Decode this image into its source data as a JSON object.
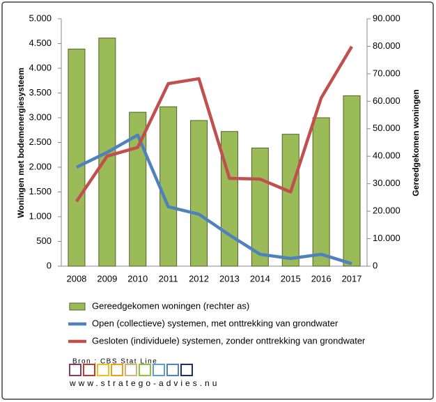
{
  "chart_data": {
    "type": "bar",
    "categories": [
      "2008",
      "2009",
      "2010",
      "2011",
      "2012",
      "2013",
      "2014",
      "2015",
      "2016",
      "2017"
    ],
    "series": [
      {
        "name": "Gereedgekomen woningen (rechter as)",
        "type": "bar",
        "axis": "y2",
        "color": "#9bbb59",
        "values": [
          79000,
          83000,
          56000,
          58000,
          53000,
          49000,
          43000,
          48000,
          54000,
          62000
        ]
      },
      {
        "name": "Open (collectieve) systemen, met onttrekking van grondwater",
        "type": "line",
        "color": "#4f81bd",
        "values": [
          2000,
          2300,
          2650,
          1200,
          1050,
          630,
          240,
          155,
          240,
          50
        ]
      },
      {
        "name": "Gesloten (individuele) systemen, zonder onttrekking van grondwater",
        "type": "line",
        "color": "#c0504d",
        "values": [
          1310,
          2225,
          2400,
          3690,
          3790,
          1775,
          1760,
          1500,
          3400,
          4440
        ]
      }
    ],
    "ylabel": "Woningen met bodemenergiesysteem",
    "y2label": "Gereedgekomen woningen",
    "ylim": [
      0,
      5000
    ],
    "yticks": [
      0,
      500,
      {
        "value": 1000,
        "label": "1.000"
      },
      {
        "value": 1500,
        "label": "1.500"
      },
      {
        "value": 2000,
        "label": "2.000"
      },
      {
        "value": 2500,
        "label": "2.500"
      },
      {
        "value": 3000,
        "label": "3.000"
      },
      {
        "value": 3500,
        "label": "3.500"
      },
      {
        "value": 4000,
        "label": "4.000"
      },
      {
        "value": 4500,
        "label": "4.500"
      },
      {
        "value": 5000,
        "label": "5.000"
      }
    ],
    "y2lim": [
      0,
      90000
    ],
    "y2ticks": [
      0,
      {
        "value": 10000,
        "label": "10.000"
      },
      {
        "value": 20000,
        "label": "20.000"
      },
      {
        "value": 30000,
        "label": "30.000"
      },
      {
        "value": 40000,
        "label": "40.000"
      },
      {
        "value": 50000,
        "label": "50.000"
      },
      {
        "value": 60000,
        "label": "60.000"
      },
      {
        "value": 70000,
        "label": "70.000"
      },
      {
        "value": 80000,
        "label": "80.000"
      },
      {
        "value": 90000,
        "label": "90.000"
      }
    ],
    "grid": false,
    "source": "Bron : CBS Stat Line",
    "url": "www.stratego-advies.nu"
  }
}
